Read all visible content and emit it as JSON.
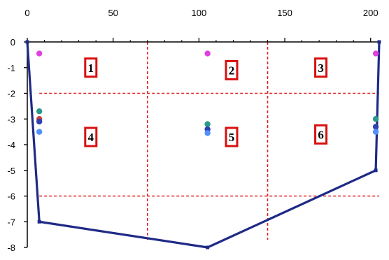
{
  "chart_data": {
    "type": "line",
    "title": "",
    "xlabel": "",
    "ylabel": "",
    "xlim": [
      0,
      205
    ],
    "ylim": [
      -8,
      0
    ],
    "x_ticks": [
      0,
      50,
      100,
      150,
      200
    ],
    "y_ticks": [
      0,
      -1,
      -2,
      -3,
      -4,
      -5,
      -6,
      -7,
      -8
    ],
    "x_axis_position": "top",
    "outline": {
      "color": "#1f2a86",
      "x": [
        0,
        7,
        105,
        203,
        205
      ],
      "y": [
        0,
        -7,
        -8,
        -5,
        0
      ]
    },
    "grid_lines": {
      "color": "#e02020",
      "style": "dashed",
      "horizontal_y": [
        -2,
        -6
      ],
      "vertical_x": [
        70,
        140
      ]
    },
    "zones": [
      {
        "label": "1",
        "x": 37,
        "y": -1.0
      },
      {
        "label": "2",
        "x": 119,
        "y": -1.1
      },
      {
        "label": "3",
        "x": 171,
        "y": -1.0
      },
      {
        "label": "4",
        "x": 37,
        "y": -3.7
      },
      {
        "label": "5",
        "x": 119,
        "y": -3.7
      },
      {
        "label": "6",
        "x": 171,
        "y": -3.6
      }
    ],
    "points": [
      {
        "x": 7,
        "y": -0.45,
        "color": "#e040e0"
      },
      {
        "x": 105,
        "y": -0.45,
        "color": "#e040e0"
      },
      {
        "x": 203,
        "y": -0.45,
        "color": "#e040e0"
      },
      {
        "x": 7,
        "y": -2.7,
        "color": "#2a9a8a"
      },
      {
        "x": 7,
        "y": -3.0,
        "color": "#c04040"
      },
      {
        "x": 7,
        "y": -3.1,
        "color": "#3040b0"
      },
      {
        "x": 7,
        "y": -3.5,
        "color": "#5090ff"
      },
      {
        "x": 105,
        "y": -3.2,
        "color": "#2a9a8a"
      },
      {
        "x": 105,
        "y": -3.4,
        "color": "#3040b0"
      },
      {
        "x": 105,
        "y": -3.55,
        "color": "#5090ff"
      },
      {
        "x": 203,
        "y": -3.0,
        "color": "#2a9a8a"
      },
      {
        "x": 203,
        "y": -3.3,
        "color": "#3040b0"
      },
      {
        "x": 203,
        "y": -3.5,
        "color": "#5090ff"
      }
    ]
  }
}
